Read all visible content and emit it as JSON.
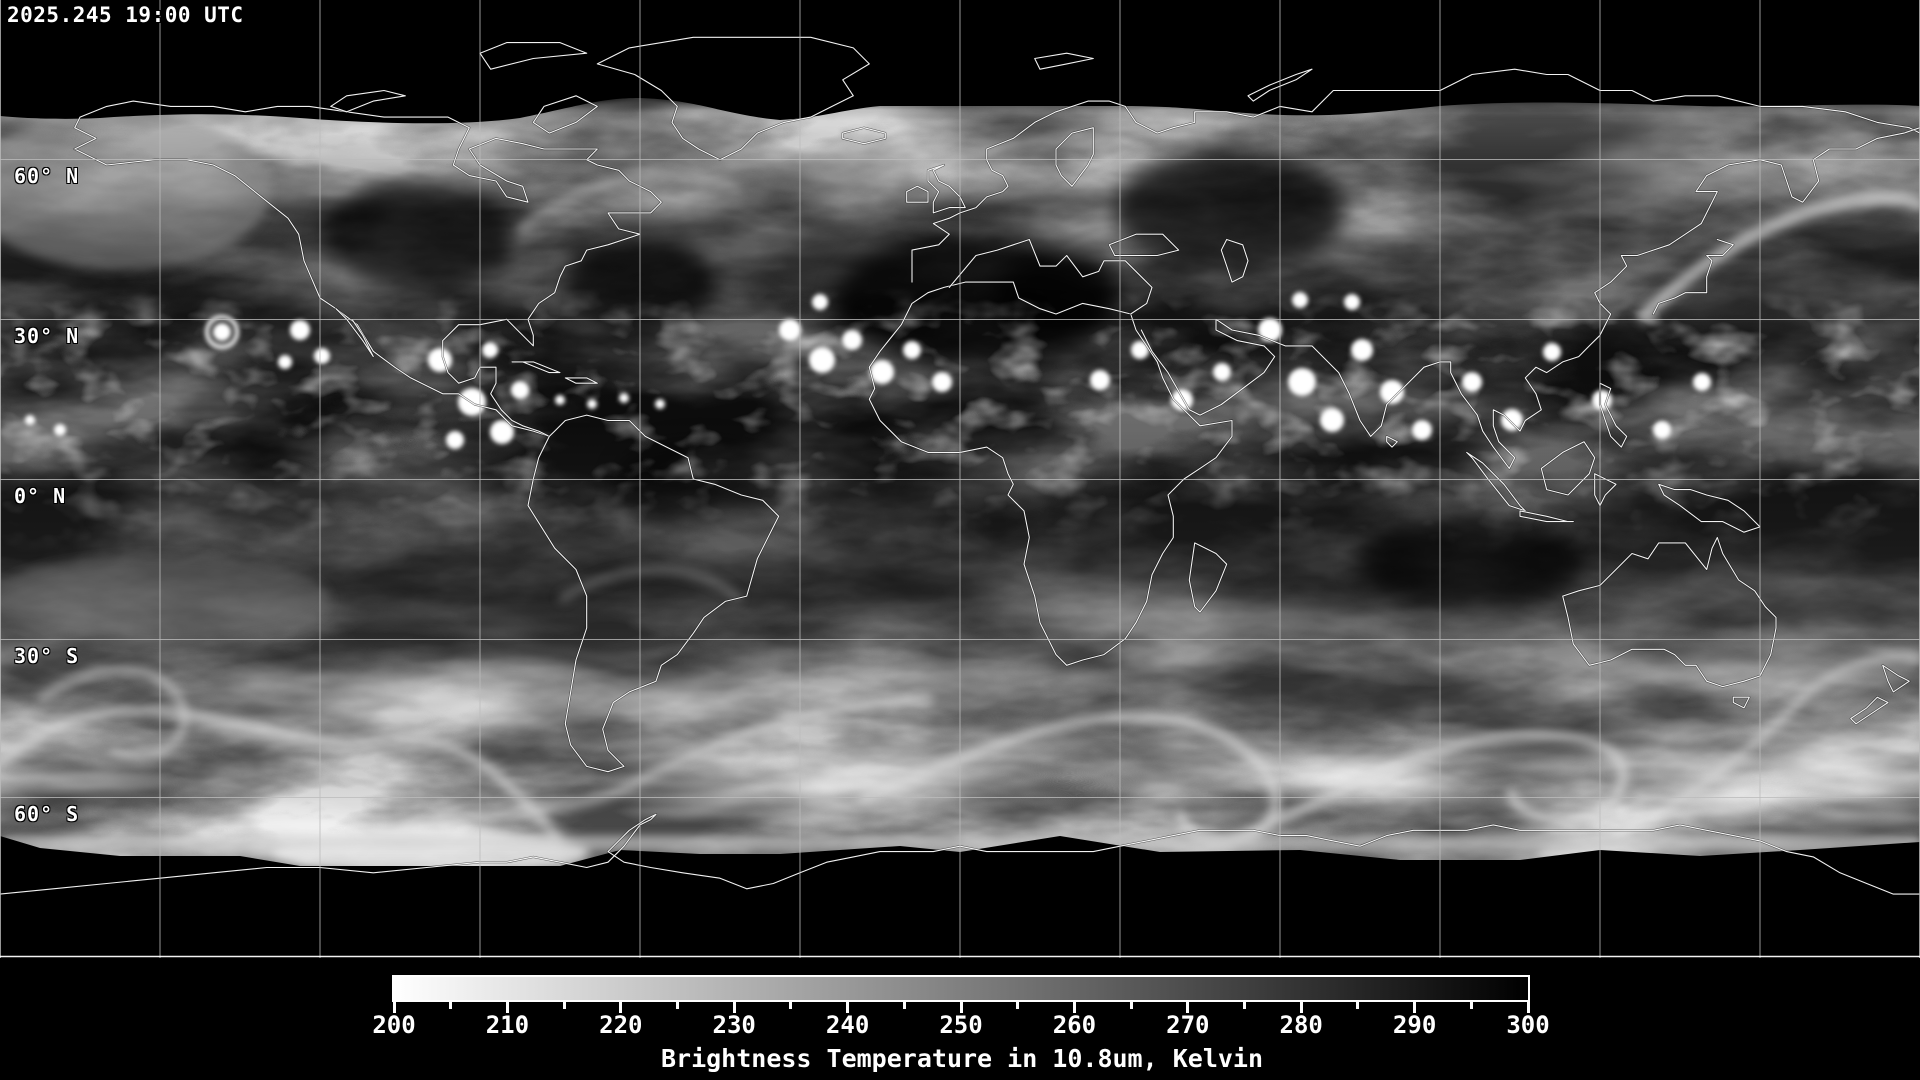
{
  "header": {
    "timestamp": "2025.245 19:00 UTC"
  },
  "map": {
    "latitude_labels": [
      "60° N",
      "30° N",
      "0° N",
      "30° S",
      "60° S"
    ]
  },
  "colorbar": {
    "title": "Brightness Temperature in 10.8um, Kelvin",
    "min_value": 200,
    "max_value": 300,
    "units": "Kelvin",
    "tick_labels": [
      "200",
      "210",
      "220",
      "230",
      "240",
      "250",
      "260",
      "270",
      "280",
      "290",
      "300"
    ],
    "scale_left_color": "#ffffff",
    "scale_right_color": "#000000"
  }
}
